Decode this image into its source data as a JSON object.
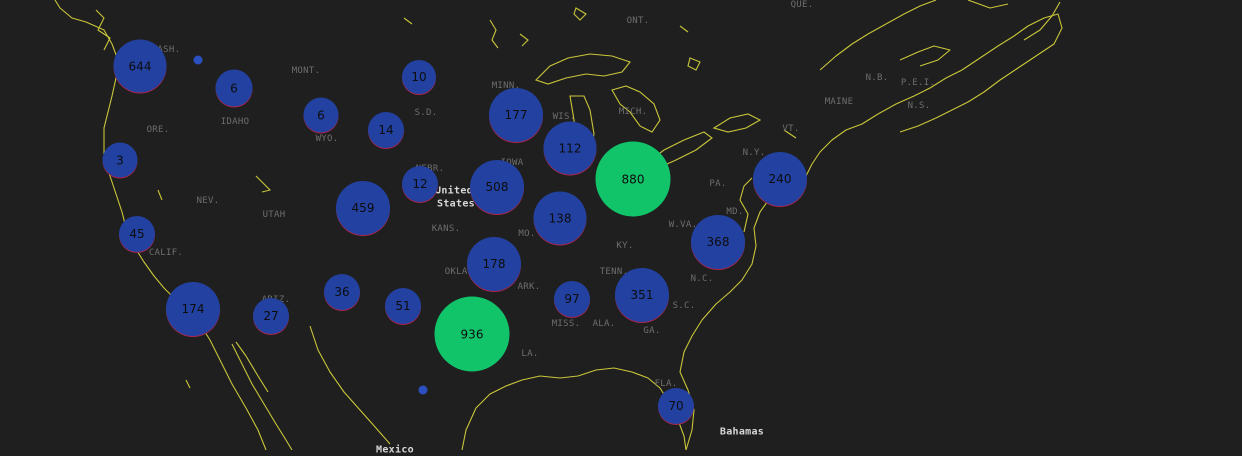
{
  "map": {
    "labels": {
      "ont": "ONT.",
      "que": "QUE.",
      "wash": "WASH.",
      "mont": "MONT.",
      "ore": "ORE.",
      "idaho": "IDAHO",
      "wyo": "WYO.",
      "sd": "S.D.",
      "minn": "MINN.",
      "wis": "WIS.",
      "mich": "MICH.",
      "iowa": "IOWA",
      "nebr": "NEBR.",
      "nev": "NEV.",
      "utah": "UTAH",
      "us1": "United",
      "us2": "States",
      "kans": "KANS.",
      "mo": "MO.",
      "ky": "KY.",
      "calif": "CALIF.",
      "okla": "OKLA.",
      "tenn": "TENN.",
      "ark": "ARK.",
      "ariz": "ARIZ.",
      "miss": "MISS.",
      "ala": "ALA.",
      "ga": "GA.",
      "sc": "S.C.",
      "nc": "N.C.",
      "la": "LA.",
      "fla": "FLA.",
      "bahamas": "Bahamas",
      "mexico": "Mexico",
      "pa": "PA.",
      "ny": "N.Y.",
      "vt": "VT.",
      "maine": "MAINE",
      "nb": "N.B.",
      "pei": "P.E.I.",
      "ns": "N.S.",
      "wva": "W.VA.",
      "md": "MD."
    },
    "clusters": [
      {
        "id": "wa",
        "count": "644",
        "color": "blue"
      },
      {
        "id": "id-north",
        "count": "6",
        "color": "blue"
      },
      {
        "id": "nd",
        "count": "10",
        "color": "blue"
      },
      {
        "id": "mt",
        "count": "6",
        "color": "blue"
      },
      {
        "id": "sd",
        "count": "14",
        "color": "blue"
      },
      {
        "id": "mn",
        "count": "177",
        "color": "blue"
      },
      {
        "id": "wi",
        "count": "112",
        "color": "blue"
      },
      {
        "id": "mi",
        "count": "880",
        "color": "green"
      },
      {
        "id": "ny",
        "count": "240",
        "color": "blue"
      },
      {
        "id": "or",
        "count": "3",
        "color": "blue"
      },
      {
        "id": "ne",
        "count": "12",
        "color": "blue"
      },
      {
        "id": "ia",
        "count": "508",
        "color": "blue"
      },
      {
        "id": "co",
        "count": "459",
        "color": "blue"
      },
      {
        "id": "mo",
        "count": "138",
        "color": "blue"
      },
      {
        "id": "va",
        "count": "368",
        "color": "blue"
      },
      {
        "id": "ca-north",
        "count": "45",
        "color": "blue"
      },
      {
        "id": "ok",
        "count": "178",
        "color": "blue"
      },
      {
        "id": "nm",
        "count": "36",
        "color": "blue"
      },
      {
        "id": "tx-north",
        "count": "51",
        "color": "blue"
      },
      {
        "id": "ms",
        "count": "97",
        "color": "blue"
      },
      {
        "id": "tn",
        "count": "351",
        "color": "blue"
      },
      {
        "id": "ca-south",
        "count": "174",
        "color": "blue"
      },
      {
        "id": "az",
        "count": "27",
        "color": "blue"
      },
      {
        "id": "tx",
        "count": "936",
        "color": "green"
      },
      {
        "id": "fl",
        "count": "70",
        "color": "blue"
      }
    ],
    "colors": {
      "background": "#1f1f1f",
      "coastline": "#c9c63a",
      "cluster_blue": "#2241a0",
      "cluster_green": "#11c46a"
    }
  }
}
